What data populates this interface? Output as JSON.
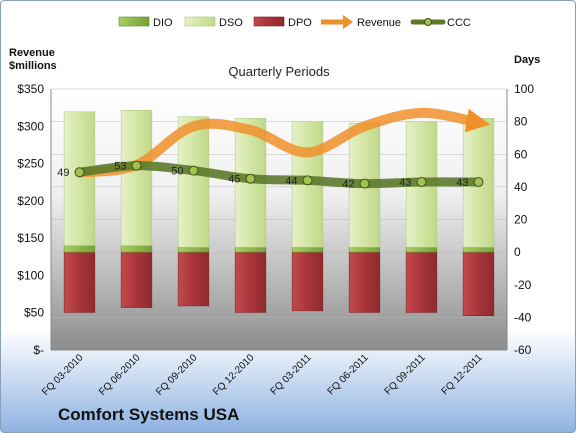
{
  "company": "Comfort Systems USA",
  "chart_data": {
    "type": "bar",
    "title": "Quarterly Periods",
    "categories": [
      "FQ 03-2010",
      "FQ 06-2010",
      "FQ 09-2010",
      "FQ 12-2010",
      "FQ 03-2011",
      "FQ 06-2011",
      "FQ 09-2011",
      "FQ 12-2011"
    ],
    "left_axis": {
      "title_line1": "Revenue",
      "title_line2": "$millions",
      "range": [
        0,
        350
      ],
      "tick_labels": [
        "$-",
        "$50",
        "$100",
        "$150",
        "$200",
        "$250",
        "$300",
        "$350"
      ]
    },
    "right_axis": {
      "title": "Days",
      "range": [
        -60,
        100
      ],
      "tick_labels": [
        "-60",
        "-40",
        "-20",
        "0",
        "20",
        "40",
        "60",
        "80",
        "100"
      ]
    },
    "legend": [
      "DIO",
      "DSO",
      "DPO",
      "Revenue",
      "CCC"
    ],
    "legend_position": "top",
    "series": [
      {
        "name": "DIO",
        "values": [
          4,
          4,
          3,
          3,
          3,
          3,
          3,
          3
        ],
        "color": "#8cb94a"
      },
      {
        "name": "DSO",
        "values": [
          82,
          83,
          80,
          79,
          77,
          76,
          77,
          79
        ],
        "color": "#d9e9b3"
      },
      {
        "name": "DPO",
        "values": [
          -37,
          -34,
          -33,
          -37,
          -36,
          -37,
          -37,
          -39
        ],
        "color": "#b03a3d"
      },
      {
        "name": "Revenue",
        "values": [
          238,
          248,
          300,
          295,
          265,
          300,
          318,
          305
        ],
        "color": "#f0902a"
      },
      {
        "name": "CCC",
        "values": [
          49,
          53,
          50,
          45,
          44,
          42,
          43,
          43
        ],
        "color": "#5c7a2a"
      }
    ],
    "ccc_labels": [
      "49",
      "53",
      "50",
      "45",
      "44",
      "42",
      "43",
      "43"
    ]
  }
}
